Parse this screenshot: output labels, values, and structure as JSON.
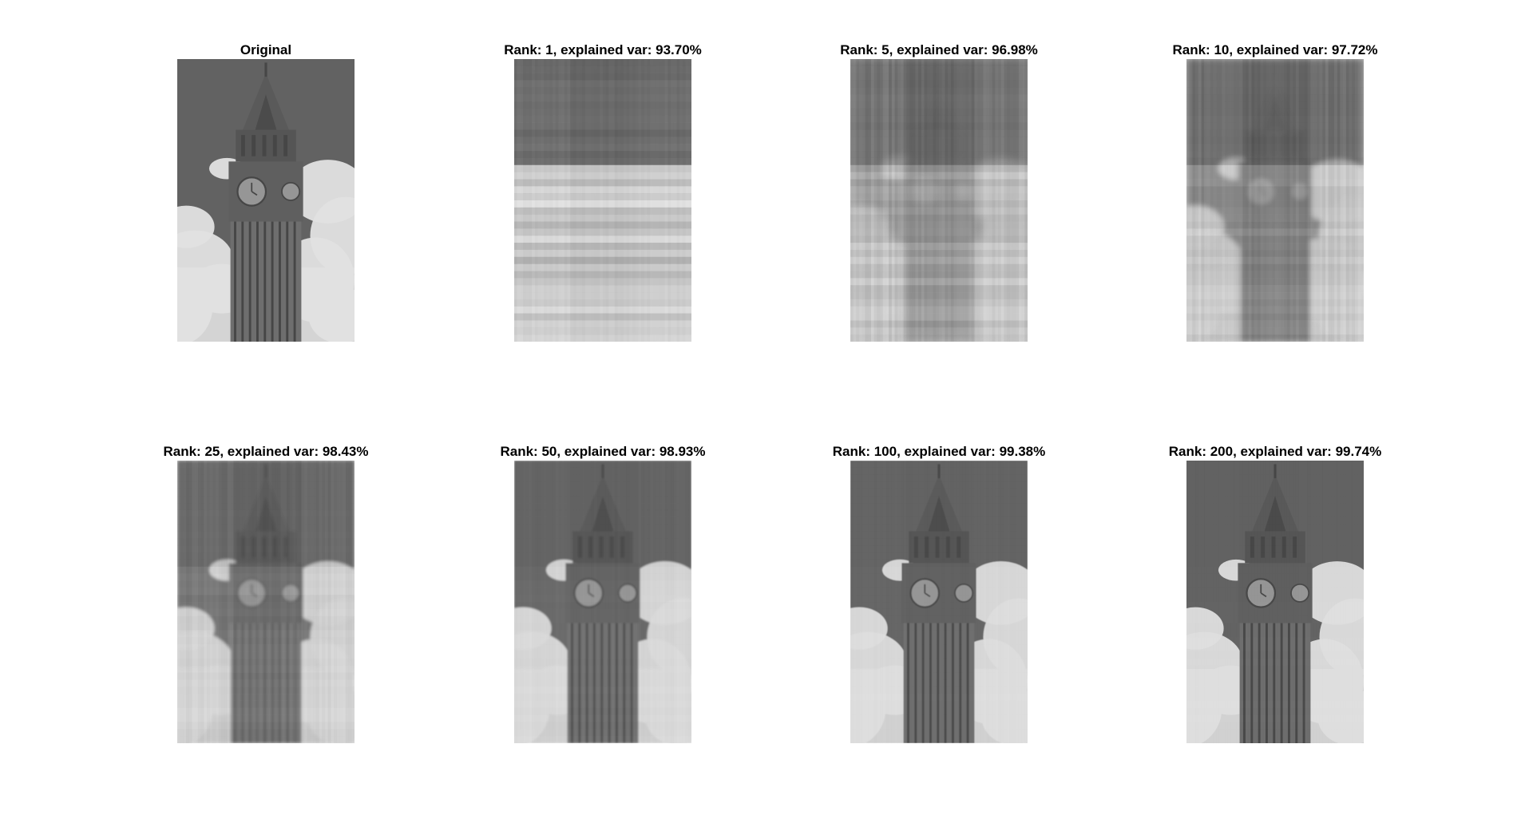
{
  "figure": {
    "background_color": "#ffffff",
    "panels": [
      {
        "title": "Original",
        "rank": null,
        "explained_var_pct": null,
        "image_subject": "clock tower against cloudy sky (grayscale)"
      },
      {
        "title": "Rank: 1, explained var: 93.70%",
        "rank": 1,
        "explained_var_pct": 93.7,
        "image_subject": "rank-1 reconstruction (vertical/horizontal stripes)"
      },
      {
        "title": "Rank: 5, explained var: 96.98%",
        "rank": 5,
        "explained_var_pct": 96.98,
        "image_subject": "rank-5 reconstruction (blurry tower outline)"
      },
      {
        "title": "Rank: 10, explained var: 97.72%",
        "rank": 10,
        "explained_var_pct": 97.72,
        "image_subject": "rank-10 reconstruction"
      },
      {
        "title": "Rank: 25, explained var: 98.43%",
        "rank": 25,
        "explained_var_pct": 98.43,
        "image_subject": "rank-25 reconstruction"
      },
      {
        "title": "Rank: 50, explained var: 98.93%",
        "rank": 50,
        "explained_var_pct": 98.93,
        "image_subject": "rank-50 reconstruction"
      },
      {
        "title": "Rank: 100, explained var: 99.38%",
        "rank": 100,
        "explained_var_pct": 99.38,
        "image_subject": "rank-100 reconstruction"
      },
      {
        "title": "Rank: 200, explained var: 99.74%",
        "rank": 200,
        "explained_var_pct": 99.74,
        "image_subject": "rank-200 reconstruction (near original)"
      }
    ]
  }
}
